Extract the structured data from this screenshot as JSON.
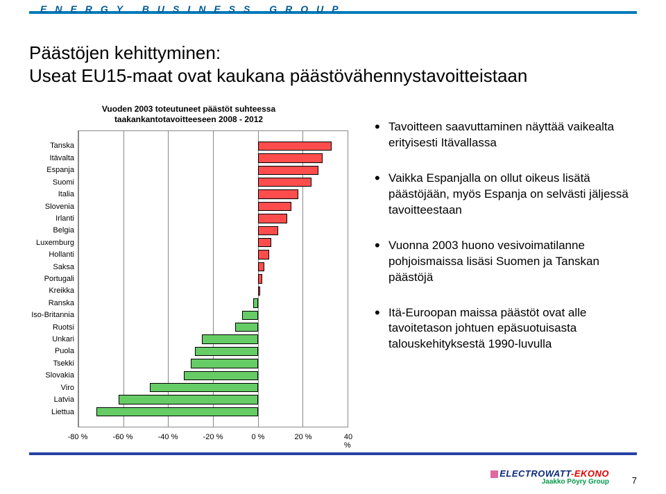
{
  "header": {
    "brand": "ENERGY BUSINESS GROUP",
    "stripe_color": "#007ab8",
    "brand_color": "#005a96"
  },
  "title": {
    "line1": "Päästöjen kehittyminen:",
    "line2": "Useat EU15-maat ovat kaukana päästövähennystavoitteistaan"
  },
  "chart": {
    "type": "horizontal_bar",
    "title_line1": "Vuoden 2003 toteutuneet päästöt suhteessa",
    "title_line2": "taakankantotavoitteeseen 2008 - 2012",
    "xmin": -80,
    "xmax": 40,
    "xtick_step": 20,
    "xtick_suffix": " %",
    "plot_bg": "#ffffff",
    "grid_color": "#888888",
    "bar_positive_color": "#ff4d4d",
    "bar_negative_color": "#66cc66",
    "bar_border_color": "#000000",
    "label_fontsize": 11,
    "title_fontsize": 12,
    "countries": [
      {
        "name": "Tanska",
        "value": 33
      },
      {
        "name": "Itävalta",
        "value": 29
      },
      {
        "name": "Espanja",
        "value": 27
      },
      {
        "name": "Suomi",
        "value": 24
      },
      {
        "name": "Italia",
        "value": 18
      },
      {
        "name": "Slovenia",
        "value": 15
      },
      {
        "name": "Irlanti",
        "value": 13
      },
      {
        "name": "Belgia",
        "value": 9
      },
      {
        "name": "Luxemburg",
        "value": 6
      },
      {
        "name": "Hollanti",
        "value": 5
      },
      {
        "name": "Saksa",
        "value": 3
      },
      {
        "name": "Portugali",
        "value": 2
      },
      {
        "name": "Kreikka",
        "value": 1
      },
      {
        "name": "Ranska",
        "value": -2
      },
      {
        "name": "Iso-Britannia",
        "value": -7
      },
      {
        "name": "Ruotsi",
        "value": -10
      },
      {
        "name": "Unkari",
        "value": -25
      },
      {
        "name": "Puola",
        "value": -28
      },
      {
        "name": "Tsekki",
        "value": -30
      },
      {
        "name": "Slovakia",
        "value": -33
      },
      {
        "name": "Viro",
        "value": -48
      },
      {
        "name": "Latvia",
        "value": -62
      },
      {
        "name": "Liettua",
        "value": -72
      }
    ]
  },
  "bullets": [
    "Tavoitteen saavuttaminen näyttää vaikealta erityisesti Itävallassa",
    "Vaikka Espanjalla on ollut oikeus lisätä päästöjään, myös Espanja on selvästi jäljessä tavoitteestaan",
    "Vuonna 2003 huono vesivoimatilanne pohjoismaissa lisäsi Suomen ja Tanskan päästöjä",
    "Itä-Euroopan maissa päästöt ovat alle tavoitetason johtuen epäsuotuisasta talouskehityksestä 1990-luvulla"
  ],
  "footer": {
    "rule_color": "#2642a4",
    "page_number": "7",
    "logo_line1_a": "ELECTROWATT",
    "logo_line1_b": "-EKONO",
    "logo_line2": "Jaakko Pöyry Group",
    "pink_square": "#e06aa0"
  }
}
